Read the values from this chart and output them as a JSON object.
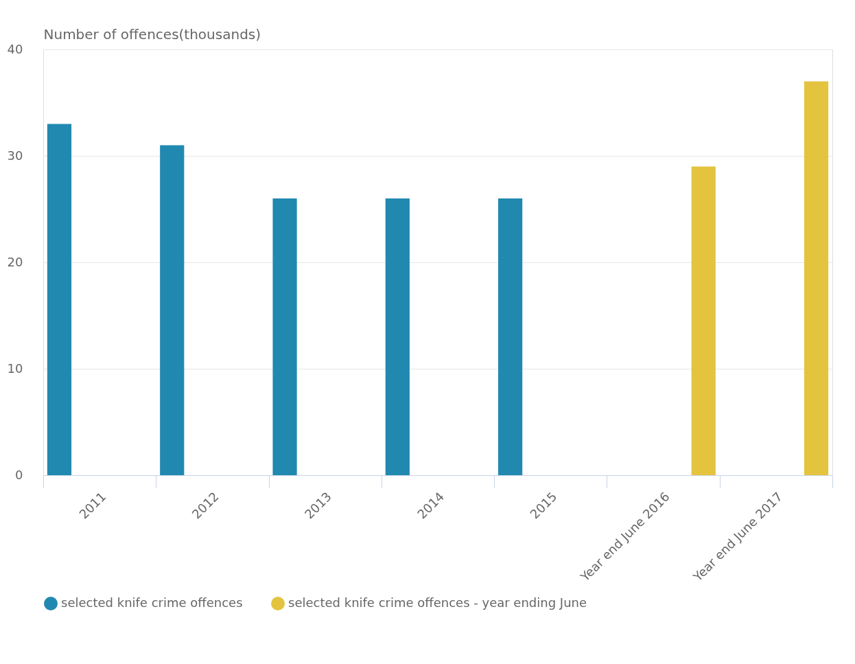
{
  "chart_data": {
    "type": "bar",
    "ylabel": "Number of offences(thousands)",
    "categories": [
      "2011",
      "2012",
      "2013",
      "2014",
      "2015",
      "Year end June 2016",
      "Year end June 2017"
    ],
    "series": [
      {
        "name": "selected knife crime offences",
        "color": "#1a85ad",
        "values": [
          33,
          31,
          26,
          26,
          26,
          null,
          null
        ]
      },
      {
        "name": "selected knife crime offences - year ending June",
        "color": "#e3c139",
        "values": [
          null,
          null,
          null,
          null,
          null,
          29,
          37
        ]
      }
    ],
    "ylim": [
      0,
      40
    ],
    "yticks": [
      0,
      10,
      20,
      30,
      40
    ],
    "grid": "y",
    "legend": "bottom"
  }
}
